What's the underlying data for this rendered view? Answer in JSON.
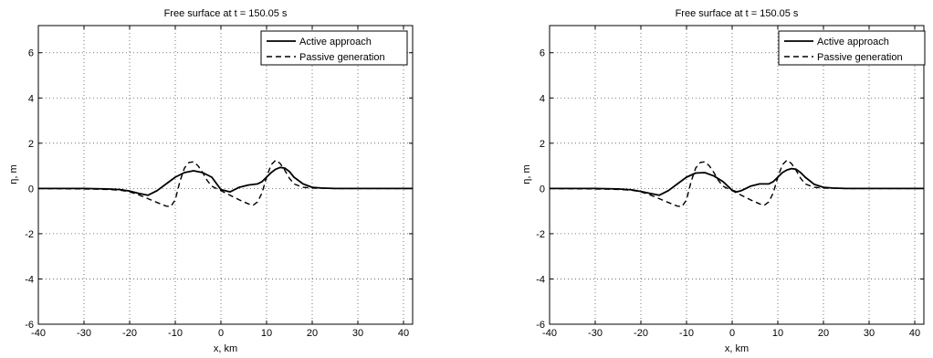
{
  "chart_data": [
    {
      "type": "line",
      "title": "Free surface at t = 150.05 s",
      "xlabel": "x, km",
      "ylabel": "η, m",
      "xlim": [
        -40,
        42
      ],
      "ylim": [
        -6,
        7.2
      ],
      "xticks": [
        -40,
        -30,
        -20,
        -10,
        0,
        10,
        20,
        30,
        40
      ],
      "yticks": [
        -6,
        -4,
        -2,
        0,
        2,
        4,
        6
      ],
      "grid": true,
      "legend_position": "top-right",
      "series": [
        {
          "name": "Active approach",
          "style": "solid",
          "x": [
            -40,
            -30,
            -25,
            -22,
            -20,
            -18,
            -16,
            -14,
            -12,
            -10,
            -8,
            -6,
            -4,
            -2,
            0,
            2,
            4,
            6,
            8,
            9,
            10,
            11,
            12,
            13,
            14,
            15,
            16,
            18,
            20,
            22,
            25,
            30,
            42
          ],
          "y": [
            0,
            0,
            -0.02,
            -0.05,
            -0.12,
            -0.22,
            -0.3,
            -0.1,
            0.2,
            0.5,
            0.7,
            0.78,
            0.7,
            0.5,
            -0.05,
            -0.15,
            0.05,
            0.15,
            0.2,
            0.3,
            0.5,
            0.7,
            0.85,
            0.93,
            0.9,
            0.75,
            0.5,
            0.2,
            0.05,
            0.02,
            0,
            0,
            0
          ]
        },
        {
          "name": "Passive generation",
          "style": "dashed",
          "x": [
            -40,
            -30,
            -25,
            -22,
            -20,
            -18,
            -16,
            -14,
            -12,
            -11,
            -10,
            -9,
            -8,
            -7,
            -6,
            -5,
            -4,
            -3,
            -2,
            0,
            2,
            4,
            6,
            7,
            8,
            9,
            10,
            11,
            12,
            13,
            14,
            15,
            16,
            18,
            20,
            22,
            25,
            30,
            42
          ],
          "y": [
            0,
            -0.02,
            -0.04,
            -0.08,
            -0.15,
            -0.28,
            -0.45,
            -0.62,
            -0.78,
            -0.8,
            -0.5,
            0.3,
            0.9,
            1.15,
            1.18,
            1.0,
            0.7,
            0.35,
            0.1,
            -0.1,
            -0.3,
            -0.5,
            -0.68,
            -0.75,
            -0.6,
            -0.2,
            0.5,
            1.05,
            1.25,
            1.1,
            0.8,
            0.45,
            0.2,
            0.05,
            0.02,
            0.01,
            0,
            0,
            0
          ]
        }
      ]
    },
    {
      "type": "line",
      "title": "Free surface at t = 150.05 s",
      "xlabel": "x, km",
      "ylabel": "η, m",
      "xlim": [
        -40,
        42
      ],
      "ylim": [
        -6,
        7.2
      ],
      "xticks": [
        -40,
        -30,
        -20,
        -10,
        0,
        10,
        20,
        30,
        40
      ],
      "yticks": [
        -6,
        -4,
        -2,
        0,
        2,
        4,
        6
      ],
      "grid": true,
      "legend_position": "top-right",
      "series": [
        {
          "name": "Active approach",
          "style": "solid",
          "x": [
            -40,
            -30,
            -25,
            -22,
            -20,
            -18,
            -16,
            -14,
            -12,
            -10,
            -8,
            -6,
            -4,
            -2,
            0,
            1,
            2,
            4,
            6,
            8,
            9,
            10,
            11,
            12,
            13,
            14,
            15,
            16,
            18,
            20,
            22,
            25,
            30,
            42
          ],
          "y": [
            0,
            0,
            -0.02,
            -0.06,
            -0.13,
            -0.22,
            -0.3,
            -0.1,
            0.2,
            0.5,
            0.68,
            0.7,
            0.55,
            0.3,
            -0.08,
            -0.15,
            -0.1,
            0.1,
            0.2,
            0.2,
            0.3,
            0.5,
            0.7,
            0.82,
            0.88,
            0.85,
            0.7,
            0.5,
            0.18,
            0.05,
            0.02,
            0,
            0,
            0
          ]
        },
        {
          "name": "Passive generation",
          "style": "dashed",
          "x": [
            -40,
            -30,
            -25,
            -22,
            -20,
            -18,
            -16,
            -14,
            -12,
            -11,
            -10,
            -9,
            -8,
            -7,
            -6,
            -5,
            -4,
            -3,
            -2,
            0,
            2,
            4,
            6,
            7,
            8,
            9,
            10,
            11,
            12,
            13,
            14,
            15,
            16,
            18,
            20,
            22,
            25,
            30,
            42
          ],
          "y": [
            0,
            -0.02,
            -0.04,
            -0.08,
            -0.15,
            -0.28,
            -0.45,
            -0.62,
            -0.78,
            -0.8,
            -0.5,
            0.3,
            0.9,
            1.15,
            1.18,
            1.0,
            0.7,
            0.35,
            0.1,
            -0.1,
            -0.3,
            -0.5,
            -0.68,
            -0.75,
            -0.6,
            -0.2,
            0.5,
            1.05,
            1.25,
            1.1,
            0.8,
            0.45,
            0.2,
            0.05,
            0.02,
            0.01,
            0,
            0,
            0
          ]
        }
      ]
    }
  ]
}
